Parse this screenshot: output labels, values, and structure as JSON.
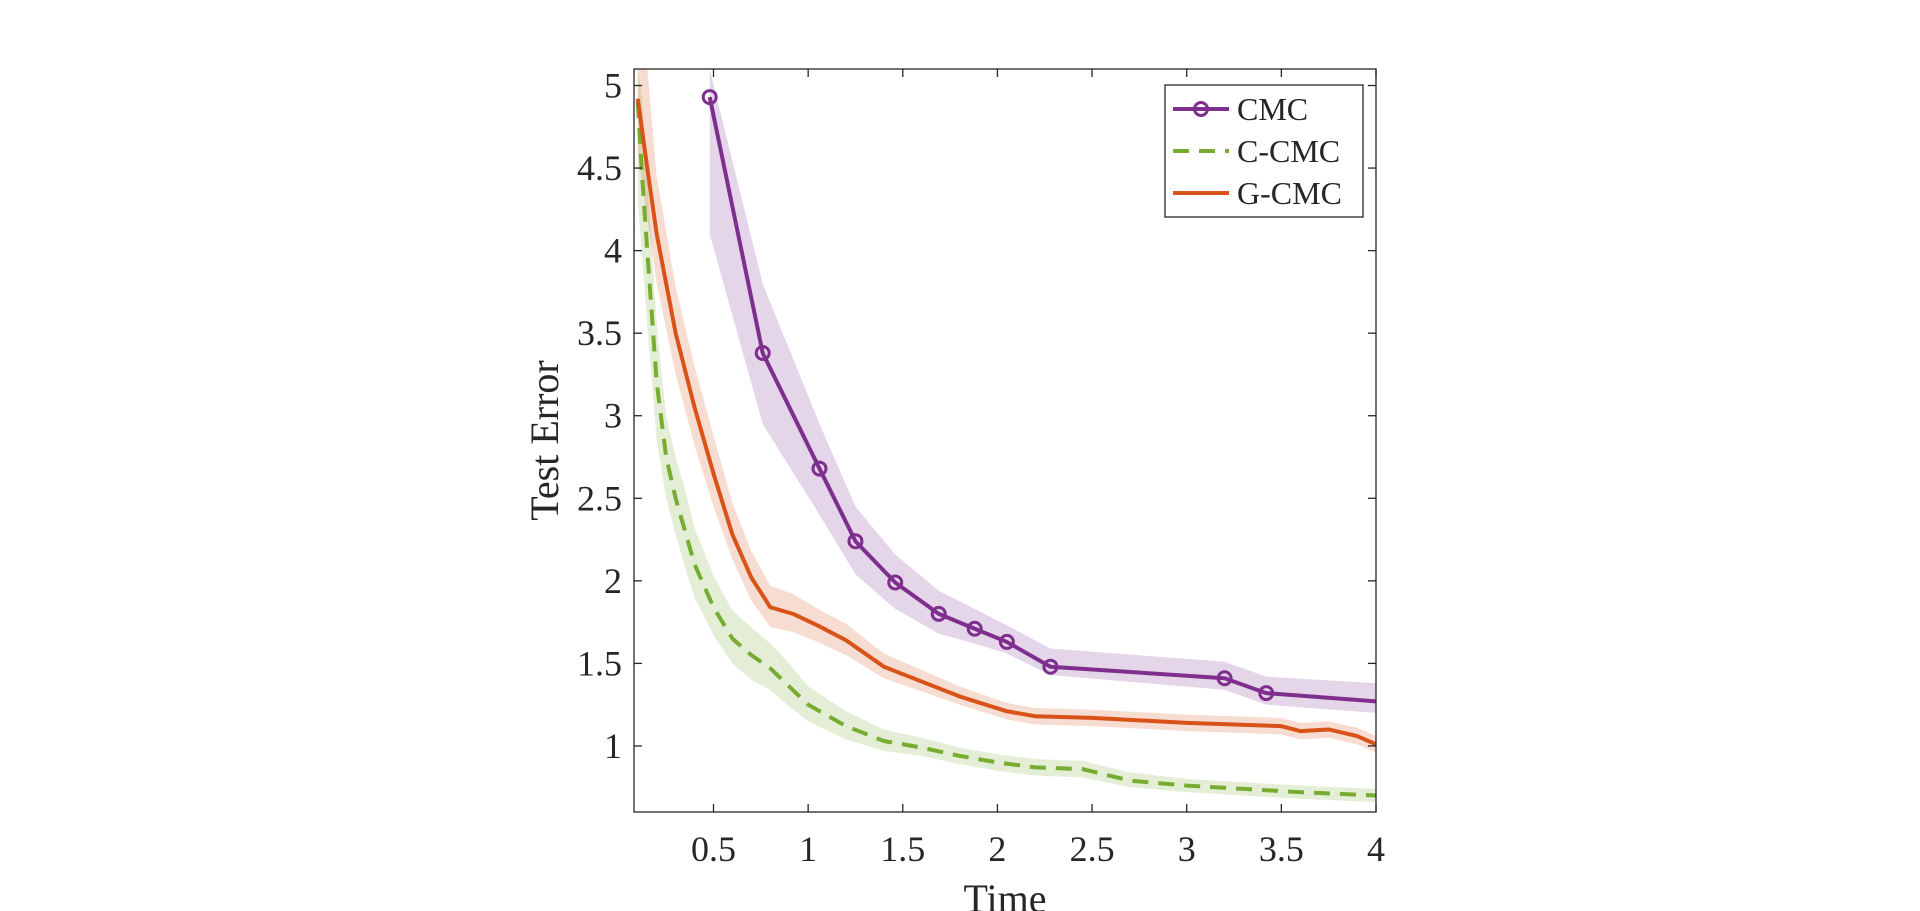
{
  "chart_data": {
    "type": "line",
    "title": "",
    "xlabel": "Time",
    "ylabel": "Test Error",
    "xlim": [
      0.08,
      4
    ],
    "ylim": [
      0.6,
      5.1
    ],
    "xticks": [
      0.5,
      1,
      1.5,
      2,
      2.5,
      3,
      3.5,
      4
    ],
    "xtick_labels": [
      "0.5",
      "1",
      "1.5",
      "2",
      "2.5",
      "3",
      "3.5",
      "4"
    ],
    "yticks": [
      1,
      1.5,
      2,
      2.5,
      3,
      3.5,
      4,
      4.5,
      5
    ],
    "ytick_labels": [
      "1",
      "1.5",
      "2",
      "2.5",
      "3",
      "3.5",
      "4",
      "4.5",
      "5"
    ],
    "grid": false,
    "legend_position": "top-right",
    "series": [
      {
        "name": "CMC",
        "color": "#7E2F8E",
        "style": "solid-circle-markers",
        "x": [
          0.48,
          0.76,
          1.06,
          1.25,
          1.46,
          1.69,
          1.88,
          2.05,
          2.28,
          3.2,
          3.42,
          4.0
        ],
        "y": [
          4.93,
          3.38,
          2.68,
          2.24,
          1.99,
          1.8,
          1.71,
          1.63,
          1.48,
          1.41,
          1.32,
          1.27
        ],
        "lower": [
          4.1,
          2.95,
          2.4,
          2.04,
          1.83,
          1.68,
          1.62,
          1.56,
          1.43,
          1.34,
          1.25,
          1.2
        ],
        "upper": [
          5.1,
          3.8,
          2.95,
          2.45,
          2.16,
          1.94,
          1.83,
          1.73,
          1.59,
          1.51,
          1.42,
          1.38
        ]
      },
      {
        "name": "C-CMC",
        "color": "#77AC30",
        "style": "dashed",
        "x": [
          0.1,
          0.12,
          0.15,
          0.2,
          0.25,
          0.3,
          0.35,
          0.4,
          0.5,
          0.6,
          0.7,
          0.8,
          0.9,
          1.0,
          1.2,
          1.4,
          1.6,
          1.8,
          2.0,
          2.2,
          2.45,
          2.7,
          3.0,
          3.3,
          3.6,
          4.0
        ],
        "y": [
          4.9,
          4.5,
          4.0,
          3.2,
          2.75,
          2.5,
          2.3,
          2.1,
          1.84,
          1.65,
          1.55,
          1.47,
          1.36,
          1.25,
          1.12,
          1.03,
          0.99,
          0.94,
          0.9,
          0.87,
          0.86,
          0.79,
          0.76,
          0.74,
          0.72,
          0.7
        ],
        "lower": [
          4.3,
          4.0,
          3.55,
          2.85,
          2.5,
          2.28,
          2.08,
          1.9,
          1.67,
          1.5,
          1.4,
          1.34,
          1.24,
          1.15,
          1.04,
          0.97,
          0.94,
          0.89,
          0.85,
          0.82,
          0.81,
          0.75,
          0.72,
          0.7,
          0.68,
          0.66
        ],
        "upper": [
          5.1,
          4.95,
          4.45,
          3.55,
          3.0,
          2.75,
          2.55,
          2.32,
          2.03,
          1.82,
          1.72,
          1.62,
          1.5,
          1.36,
          1.21,
          1.1,
          1.05,
          0.99,
          0.95,
          0.92,
          0.91,
          0.84,
          0.8,
          0.78,
          0.76,
          0.74
        ]
      },
      {
        "name": "G-CMC",
        "color": "#D95319",
        "style": "solid",
        "x": [
          0.1,
          0.15,
          0.2,
          0.3,
          0.4,
          0.5,
          0.6,
          0.7,
          0.8,
          0.92,
          1.05,
          1.2,
          1.4,
          1.6,
          1.8,
          2.05,
          2.2,
          2.5,
          3.0,
          3.5,
          3.6,
          3.75,
          3.9,
          4.0
        ],
        "y": [
          4.92,
          4.5,
          4.1,
          3.5,
          3.05,
          2.65,
          2.28,
          2.02,
          1.84,
          1.8,
          1.73,
          1.64,
          1.48,
          1.39,
          1.3,
          1.21,
          1.18,
          1.17,
          1.14,
          1.12,
          1.09,
          1.1,
          1.06,
          1.01
        ],
        "lower": [
          4.6,
          4.2,
          3.8,
          3.25,
          2.82,
          2.45,
          2.13,
          1.88,
          1.72,
          1.69,
          1.63,
          1.55,
          1.41,
          1.33,
          1.25,
          1.16,
          1.13,
          1.12,
          1.09,
          1.07,
          1.04,
          1.05,
          1.01,
          0.96
        ],
        "upper": [
          5.1,
          5.1,
          4.45,
          3.78,
          3.3,
          2.88,
          2.47,
          2.18,
          1.97,
          1.92,
          1.83,
          1.74,
          1.56,
          1.46,
          1.36,
          1.26,
          1.23,
          1.22,
          1.19,
          1.17,
          1.14,
          1.15,
          1.11,
          1.06
        ]
      }
    ]
  }
}
